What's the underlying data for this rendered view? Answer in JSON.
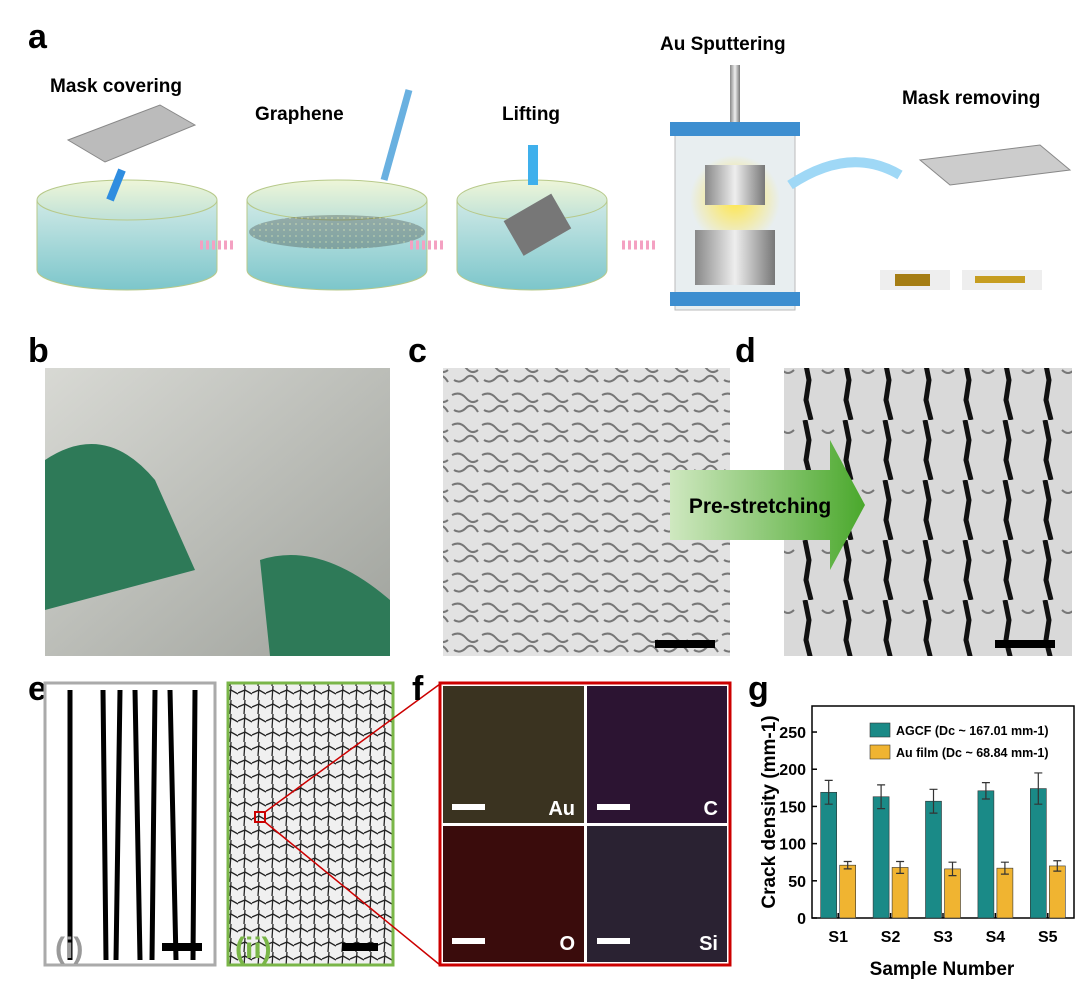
{
  "panels": {
    "a": "a",
    "b": "b",
    "c": "c",
    "d": "d",
    "e": "e",
    "f": "f",
    "g": "g"
  },
  "process": {
    "step1": "Mask covering",
    "step2": "Graphene",
    "step3": "Lifting",
    "step4": "Au Sputtering",
    "step5": "Mask removing"
  },
  "arrow_label": "Pre-stretching",
  "panel_e": {
    "left": "(i)",
    "right": "(ii)"
  },
  "panel_f": {
    "elements": [
      "Au",
      "C",
      "O",
      "Si"
    ]
  },
  "chart_data": {
    "type": "bar",
    "y_label": "Crack density (mm-1)",
    "x_label": "Sample Number",
    "categories": [
      "S1",
      "S2",
      "S3",
      "S4",
      "S5"
    ],
    "series": [
      {
        "name": "AGCF (Dc ~ 167.01 mm-1)",
        "color": "#1a8a87",
        "values": [
          169,
          163,
          157,
          171,
          174
        ],
        "errors": [
          16,
          16,
          16,
          11,
          21
        ]
      },
      {
        "name": "Au film (Dc ~ 68.84 mm-1)",
        "color": "#f0b431",
        "values": [
          71,
          68,
          66,
          67,
          70
        ],
        "errors": [
          5,
          8,
          9,
          8,
          7
        ]
      }
    ],
    "ylim": [
      0,
      285
    ],
    "yticks": [
      0,
      50,
      100,
      150,
      200,
      250
    ],
    "legend": "upper-right"
  }
}
